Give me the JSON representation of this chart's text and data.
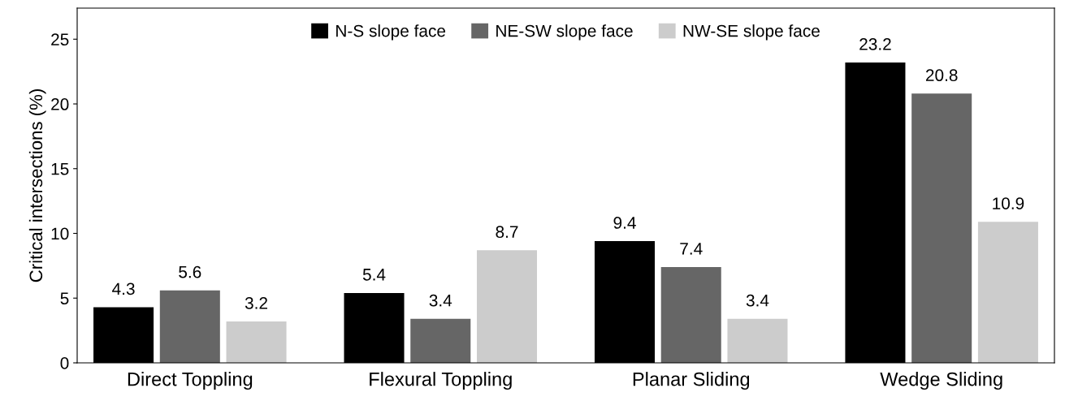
{
  "chart_data": {
    "type": "bar",
    "ylabel": "Critical intersections (%)",
    "categories": [
      "Direct Toppling",
      "Flexural Toppling",
      "Planar Sliding",
      "Wedge Sliding"
    ],
    "series": [
      {
        "name": "N-S slope face",
        "color": "#000000",
        "values": [
          4.3,
          5.4,
          9.4,
          23.2
        ]
      },
      {
        "name": "NE-SW slope face",
        "color": "#666666",
        "values": [
          5.6,
          3.4,
          7.4,
          20.8
        ]
      },
      {
        "name": "NW-SE slope face",
        "color": "#cccccc",
        "values": [
          3.2,
          8.7,
          3.4,
          10.9
        ]
      }
    ],
    "ylim": [
      0,
      27.4
    ],
    "yticks": [
      0,
      5,
      10,
      15,
      20,
      25
    ],
    "data_labels": true,
    "legend": "top",
    "grid": false
  }
}
